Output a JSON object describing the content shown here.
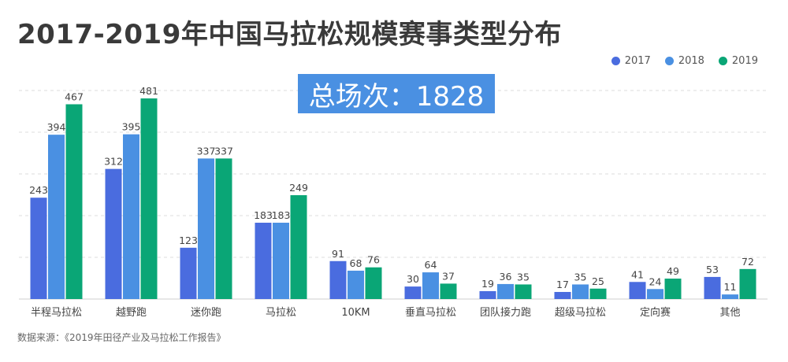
{
  "title": "2017-2019年中国马拉松规模赛事类型分布",
  "total_badge": "总场次：1828",
  "source": "数据来源：《2019年田径产业及马拉松工作报告》",
  "colors": {
    "2017": "#4a6cdf",
    "2018": "#4a90e2",
    "2019": "#0aa676"
  },
  "chart_data": {
    "type": "bar",
    "title": "2017-2019年中国马拉松规模赛事类型分布",
    "xlabel": "",
    "ylabel": "",
    "ylim": [
      0,
      500
    ],
    "grid": true,
    "legend_position": "top-right",
    "categories": [
      "半程马拉松",
      "越野跑",
      "迷你跑",
      "马拉松",
      "10KM",
      "垂直马拉松",
      "团队接力跑",
      "超级马拉松",
      "定向赛",
      "其他"
    ],
    "series": [
      {
        "name": "2017",
        "color": "#4a6cdf",
        "values": [
          243,
          312,
          123,
          183,
          91,
          30,
          19,
          17,
          41,
          53
        ]
      },
      {
        "name": "2018",
        "color": "#4a90e2",
        "values": [
          394,
          395,
          337,
          183,
          68,
          64,
          36,
          35,
          24,
          11
        ]
      },
      {
        "name": "2019",
        "color": "#0aa676",
        "values": [
          467,
          481,
          337,
          249,
          76,
          37,
          35,
          25,
          49,
          72
        ]
      }
    ]
  }
}
